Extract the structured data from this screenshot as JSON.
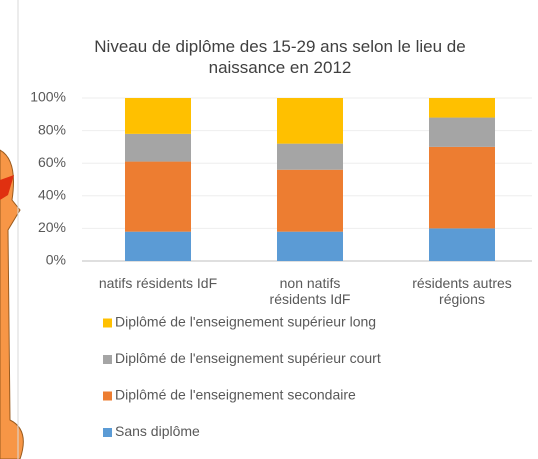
{
  "chart_data": {
    "type": "stacked_bar",
    "title": "Niveau de diplôme des 15-29 ans selon le lieu de naissance en 2012",
    "categories": [
      "natifs résidents IdF",
      "non natifs résidents IdF",
      "résidents autres régions"
    ],
    "series": [
      {
        "name": "Sans diplôme",
        "color": "#5b9bd5",
        "values": [
          18,
          18,
          20
        ]
      },
      {
        "name": "Diplômé de l'enseignement secondaire",
        "color": "#ed7d31",
        "values": [
          43,
          38,
          50
        ]
      },
      {
        "name": "Diplômé de l'enseignement supérieur court",
        "color": "#a5a5a5",
        "values": [
          17,
          16,
          18
        ]
      },
      {
        "name": "Diplômé de l'enseignement supérieur long",
        "color": "#ffc000",
        "values": [
          22,
          28,
          12
        ]
      }
    ],
    "ylim": [
      0,
      100
    ],
    "yticks": [
      {
        "value": 0,
        "label": "0%"
      },
      {
        "value": 20,
        "label": "20%"
      },
      {
        "value": 40,
        "label": "40%"
      },
      {
        "value": 60,
        "label": "60%"
      },
      {
        "value": 80,
        "label": "80%"
      },
      {
        "value": 100,
        "label": "100%"
      }
    ],
    "grid": true
  }
}
